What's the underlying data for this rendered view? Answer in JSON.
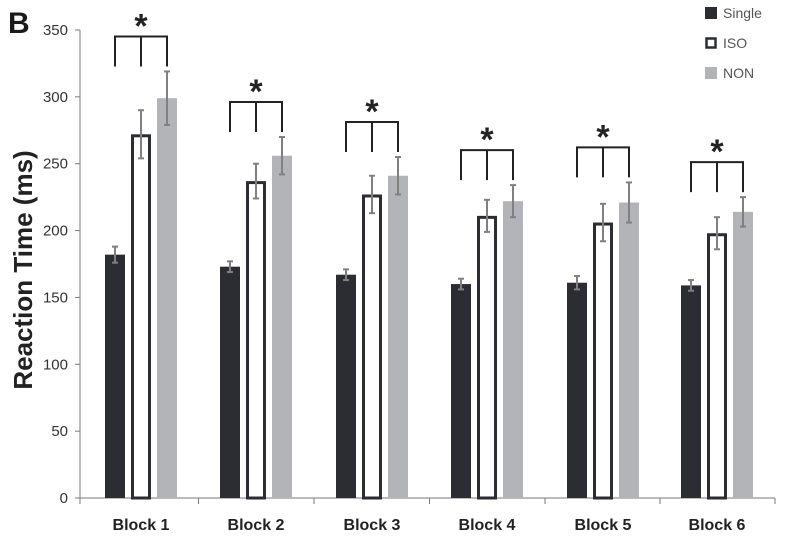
{
  "chart_data": {
    "type": "bar",
    "panel_label": "B",
    "ylabel": "Reaction Time (ms)",
    "ylim": [
      0,
      350
    ],
    "yticks": [
      0,
      50,
      100,
      150,
      200,
      250,
      300,
      350
    ],
    "categories": [
      "Block 1",
      "Block 2",
      "Block 3",
      "Block 4",
      "Block 5",
      "Block 6"
    ],
    "series": [
      {
        "name": "Single",
        "color": "#2b2d33",
        "style": "filled",
        "values": [
          182,
          173,
          167,
          160,
          161,
          159
        ],
        "errors": [
          6,
          4,
          4,
          4,
          5,
          4
        ]
      },
      {
        "name": "ISO",
        "color": "#2b2d33",
        "style": "outline",
        "values": [
          272,
          237,
          227,
          211,
          206,
          198
        ],
        "errors": [
          18,
          13,
          14,
          12,
          14,
          12
        ]
      },
      {
        "name": "NON",
        "color": "#b3b4b8",
        "style": "filled",
        "values": [
          299,
          256,
          241,
          222,
          221,
          214
        ],
        "errors": [
          20,
          14,
          14,
          12,
          15,
          11
        ]
      }
    ],
    "significance": {
      "symbol": "*",
      "blocks": [
        "Block 1",
        "Block 2",
        "Block 3",
        "Block 4",
        "Block 5",
        "Block 6"
      ]
    },
    "legend_position": "top-right",
    "grid": false
  }
}
